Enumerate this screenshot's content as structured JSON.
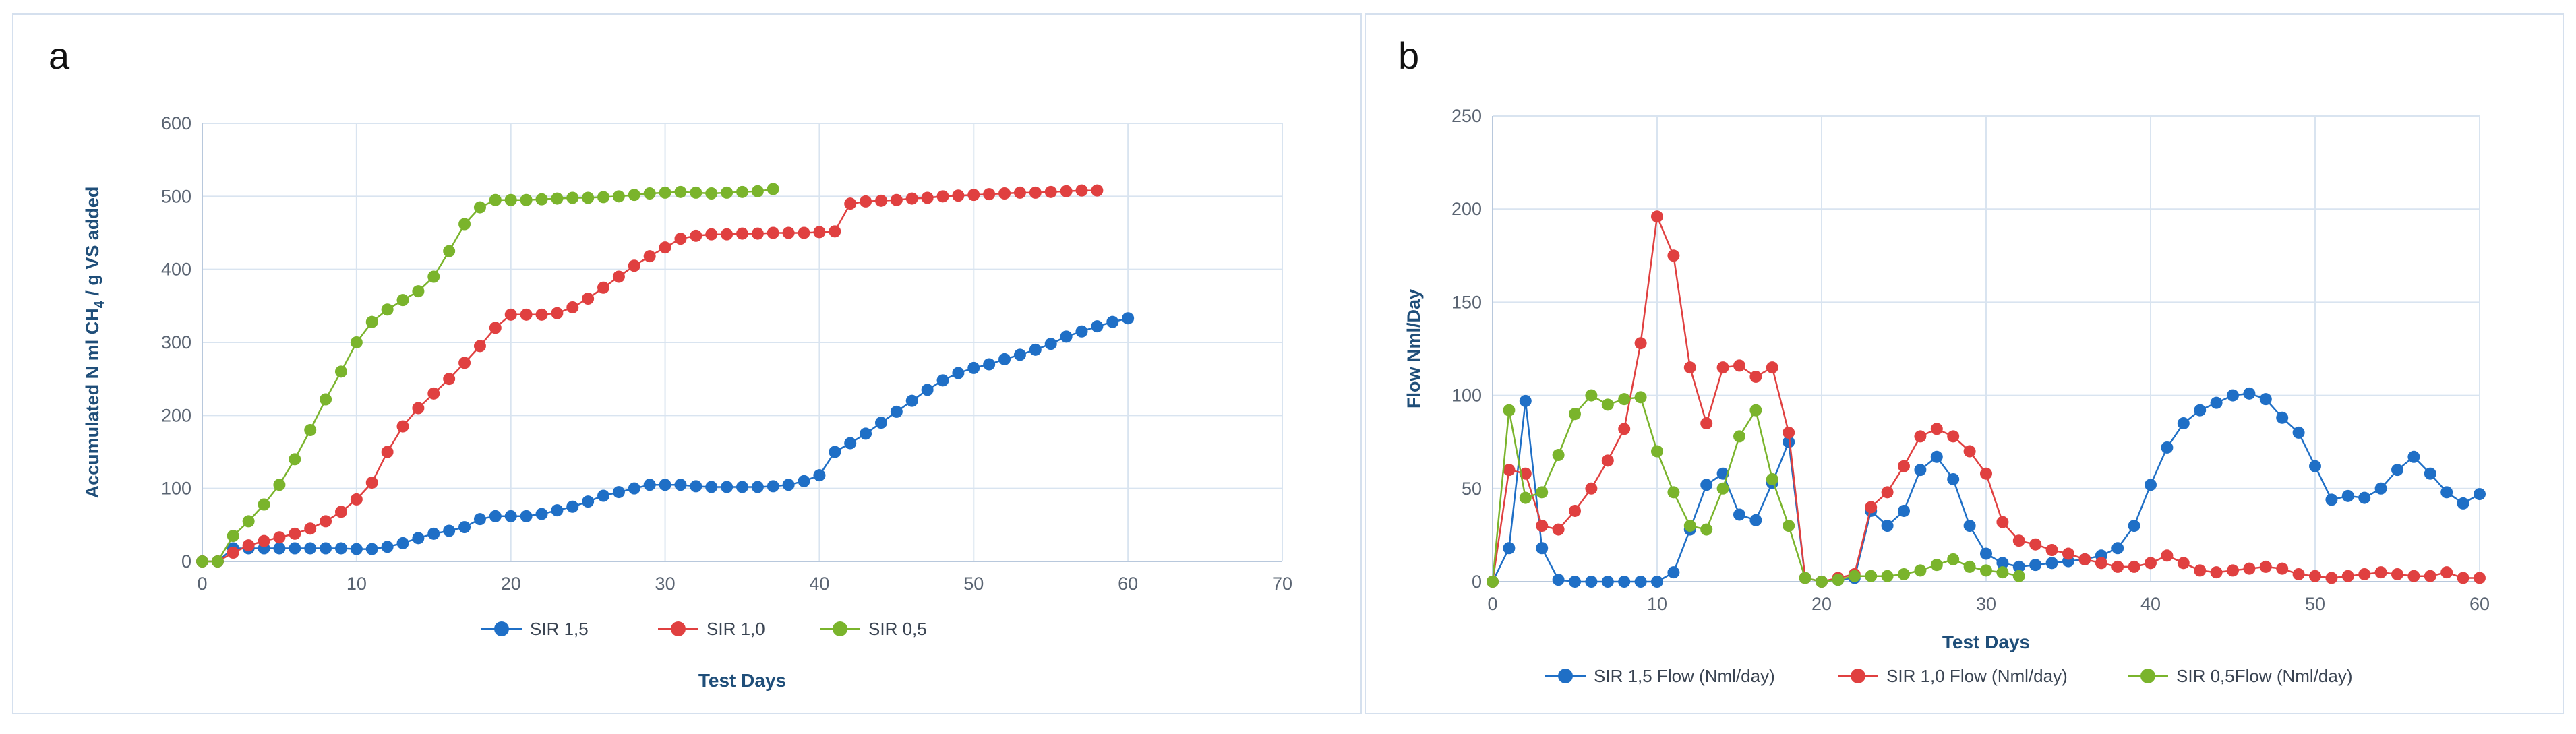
{
  "chart_data": [
    {
      "panel_label": "a",
      "type": "line",
      "ylabel_parts": [
        "Accumulated  N ml CH",
        "4",
        " / g VS added"
      ],
      "xlabel": "Test Days",
      "xlim": [
        0,
        70
      ],
      "ylim": [
        0,
        600
      ],
      "xticks": [
        0,
        10,
        20,
        30,
        40,
        50,
        60,
        70
      ],
      "yticks": [
        0,
        100,
        200,
        300,
        400,
        500,
        600
      ],
      "grid": true,
      "legend": "bottom",
      "series": [
        {
          "name": "SIR 1,5",
          "color": "#1f6fc6",
          "x": [
            0,
            1,
            2,
            3,
            4,
            5,
            6,
            7,
            8,
            9,
            10,
            11,
            12,
            13,
            14,
            15,
            16,
            17,
            18,
            19,
            20,
            21,
            22,
            23,
            24,
            25,
            26,
            27,
            28,
            29,
            30,
            31,
            32,
            33,
            34,
            35,
            36,
            37,
            38,
            39,
            40,
            41,
            42,
            43,
            44,
            45,
            46,
            47,
            48,
            49,
            50,
            51,
            52,
            53,
            54,
            55,
            56,
            57,
            58,
            59,
            60
          ],
          "y": [
            0,
            0,
            18,
            18,
            18,
            18,
            18,
            18,
            18,
            18,
            17,
            17,
            20,
            25,
            32,
            38,
            42,
            47,
            58,
            62,
            62,
            62,
            65,
            70,
            75,
            82,
            90,
            95,
            100,
            105,
            105,
            105,
            103,
            102,
            102,
            102,
            102,
            103,
            105,
            110,
            118,
            150,
            162,
            175,
            190,
            205,
            220,
            235,
            248,
            258,
            265,
            270,
            277,
            283,
            290,
            298,
            308,
            315,
            322,
            328,
            333
          ]
        },
        {
          "name": "SIR 1,0",
          "color": "#e04040",
          "x": [
            0,
            1,
            2,
            3,
            4,
            5,
            6,
            7,
            8,
            9,
            10,
            11,
            12,
            13,
            14,
            15,
            16,
            17,
            18,
            19,
            20,
            21,
            22,
            23,
            24,
            25,
            26,
            27,
            28,
            29,
            30,
            31,
            32,
            33,
            34,
            35,
            36,
            37,
            38,
            39,
            40,
            41,
            42,
            43,
            44,
            45,
            46,
            47,
            48,
            49,
            50,
            51,
            52,
            53,
            54,
            55,
            56,
            57,
            58
          ],
          "y": [
            0,
            0,
            12,
            22,
            28,
            33,
            38,
            45,
            55,
            68,
            85,
            108,
            150,
            185,
            210,
            230,
            250,
            272,
            295,
            320,
            338,
            338,
            338,
            340,
            348,
            360,
            375,
            390,
            405,
            418,
            430,
            442,
            446,
            448,
            448,
            449,
            449,
            450,
            450,
            450,
            451,
            452,
            490,
            493,
            494,
            495,
            497,
            498,
            500,
            501,
            502,
            503,
            504,
            505,
            505,
            506,
            507,
            508,
            508
          ]
        },
        {
          "name": "SIR 0,5",
          "color": "#7ab42c",
          "x": [
            0,
            1,
            2,
            3,
            4,
            5,
            6,
            7,
            8,
            9,
            10,
            11,
            12,
            13,
            14,
            15,
            16,
            17,
            18,
            19,
            20,
            21,
            22,
            23,
            24,
            25,
            26,
            27,
            28,
            29,
            30,
            31,
            32,
            33,
            34,
            35,
            36,
            37
          ],
          "y": [
            0,
            0,
            35,
            55,
            78,
            105,
            140,
            180,
            222,
            260,
            300,
            328,
            345,
            358,
            370,
            390,
            425,
            462,
            485,
            495,
            495,
            495,
            496,
            497,
            498,
            498,
            499,
            500,
            502,
            504,
            505,
            506,
            505,
            504,
            505,
            506,
            507,
            510
          ]
        }
      ]
    },
    {
      "panel_label": "b",
      "type": "line",
      "ylabel": "Flow Nml/Day",
      "xlabel": "Test Days",
      "xlim": [
        0,
        60
      ],
      "ylim": [
        0,
        250
      ],
      "xticks": [
        0,
        10,
        20,
        30,
        40,
        50,
        60
      ],
      "yticks": [
        0,
        50,
        100,
        150,
        200,
        250
      ],
      "grid": true,
      "legend": "bottom",
      "series": [
        {
          "name": "SIR 1,5 Flow (Nml/day)",
          "color": "#1f6fc6",
          "x": [
            0,
            1,
            2,
            3,
            4,
            5,
            6,
            7,
            8,
            9,
            10,
            11,
            12,
            13,
            14,
            15,
            16,
            17,
            18,
            19,
            20,
            21,
            22,
            23,
            24,
            25,
            26,
            27,
            28,
            29,
            30,
            31,
            32,
            33,
            34,
            35,
            36,
            37,
            38,
            39,
            40,
            41,
            42,
            43,
            44,
            45,
            46,
            47,
            48,
            49,
            50,
            51,
            52,
            53,
            54,
            55,
            56,
            57,
            58,
            59,
            60
          ],
          "y": [
            0,
            18,
            97,
            18,
            1,
            0,
            0,
            0,
            0,
            0,
            0,
            5,
            28,
            52,
            58,
            36,
            33,
            53,
            75,
            2,
            0,
            1,
            2,
            38,
            30,
            38,
            60,
            67,
            55,
            30,
            15,
            10,
            8,
            9,
            10,
            11,
            12,
            14,
            18,
            30,
            52,
            72,
            85,
            92,
            96,
            100,
            101,
            98,
            88,
            80,
            62,
            44,
            46,
            45,
            50,
            60,
            67,
            58,
            48,
            42,
            47
          ]
        },
        {
          "name": "SIR 1,0 Flow (Nml/day)",
          "color": "#e04040",
          "x": [
            0,
            1,
            2,
            3,
            4,
            5,
            6,
            7,
            8,
            9,
            10,
            11,
            12,
            13,
            14,
            15,
            16,
            17,
            18,
            19,
            20,
            21,
            22,
            23,
            24,
            25,
            26,
            27,
            28,
            29,
            30,
            31,
            32,
            33,
            34,
            35,
            36,
            37,
            38,
            39,
            40,
            41,
            42,
            43,
            44,
            45,
            46,
            47,
            48,
            49,
            50,
            51,
            52,
            53,
            54,
            55,
            56,
            57,
            58,
            59,
            60
          ],
          "y": [
            0,
            60,
            58,
            30,
            28,
            38,
            50,
            65,
            82,
            128,
            196,
            175,
            115,
            85,
            115,
            116,
            110,
            115,
            80,
            2,
            0,
            2,
            4,
            40,
            48,
            62,
            78,
            82,
            78,
            70,
            58,
            32,
            22,
            20,
            17,
            15,
            12,
            10,
            8,
            8,
            10,
            14,
            10,
            6,
            5,
            6,
            7,
            8,
            7,
            4,
            3,
            2,
            3,
            4,
            5,
            4,
            3,
            3,
            5,
            2,
            2
          ]
        },
        {
          "name": "SIR 0,5Flow (Nml/day)",
          "color": "#7ab42c",
          "x": [
            0,
            1,
            2,
            3,
            4,
            5,
            6,
            7,
            8,
            9,
            10,
            11,
            12,
            13,
            14,
            15,
            16,
            17,
            18,
            19,
            20,
            21,
            22,
            23,
            24,
            25,
            26,
            27,
            28,
            29,
            30,
            31,
            32
          ],
          "y": [
            0,
            92,
            45,
            48,
            68,
            90,
            100,
            95,
            98,
            99,
            70,
            48,
            30,
            28,
            50,
            78,
            92,
            55,
            30,
            2,
            0,
            1,
            3,
            3,
            3,
            4,
            6,
            9,
            12,
            8,
            6,
            5,
            3
          ]
        }
      ]
    }
  ]
}
